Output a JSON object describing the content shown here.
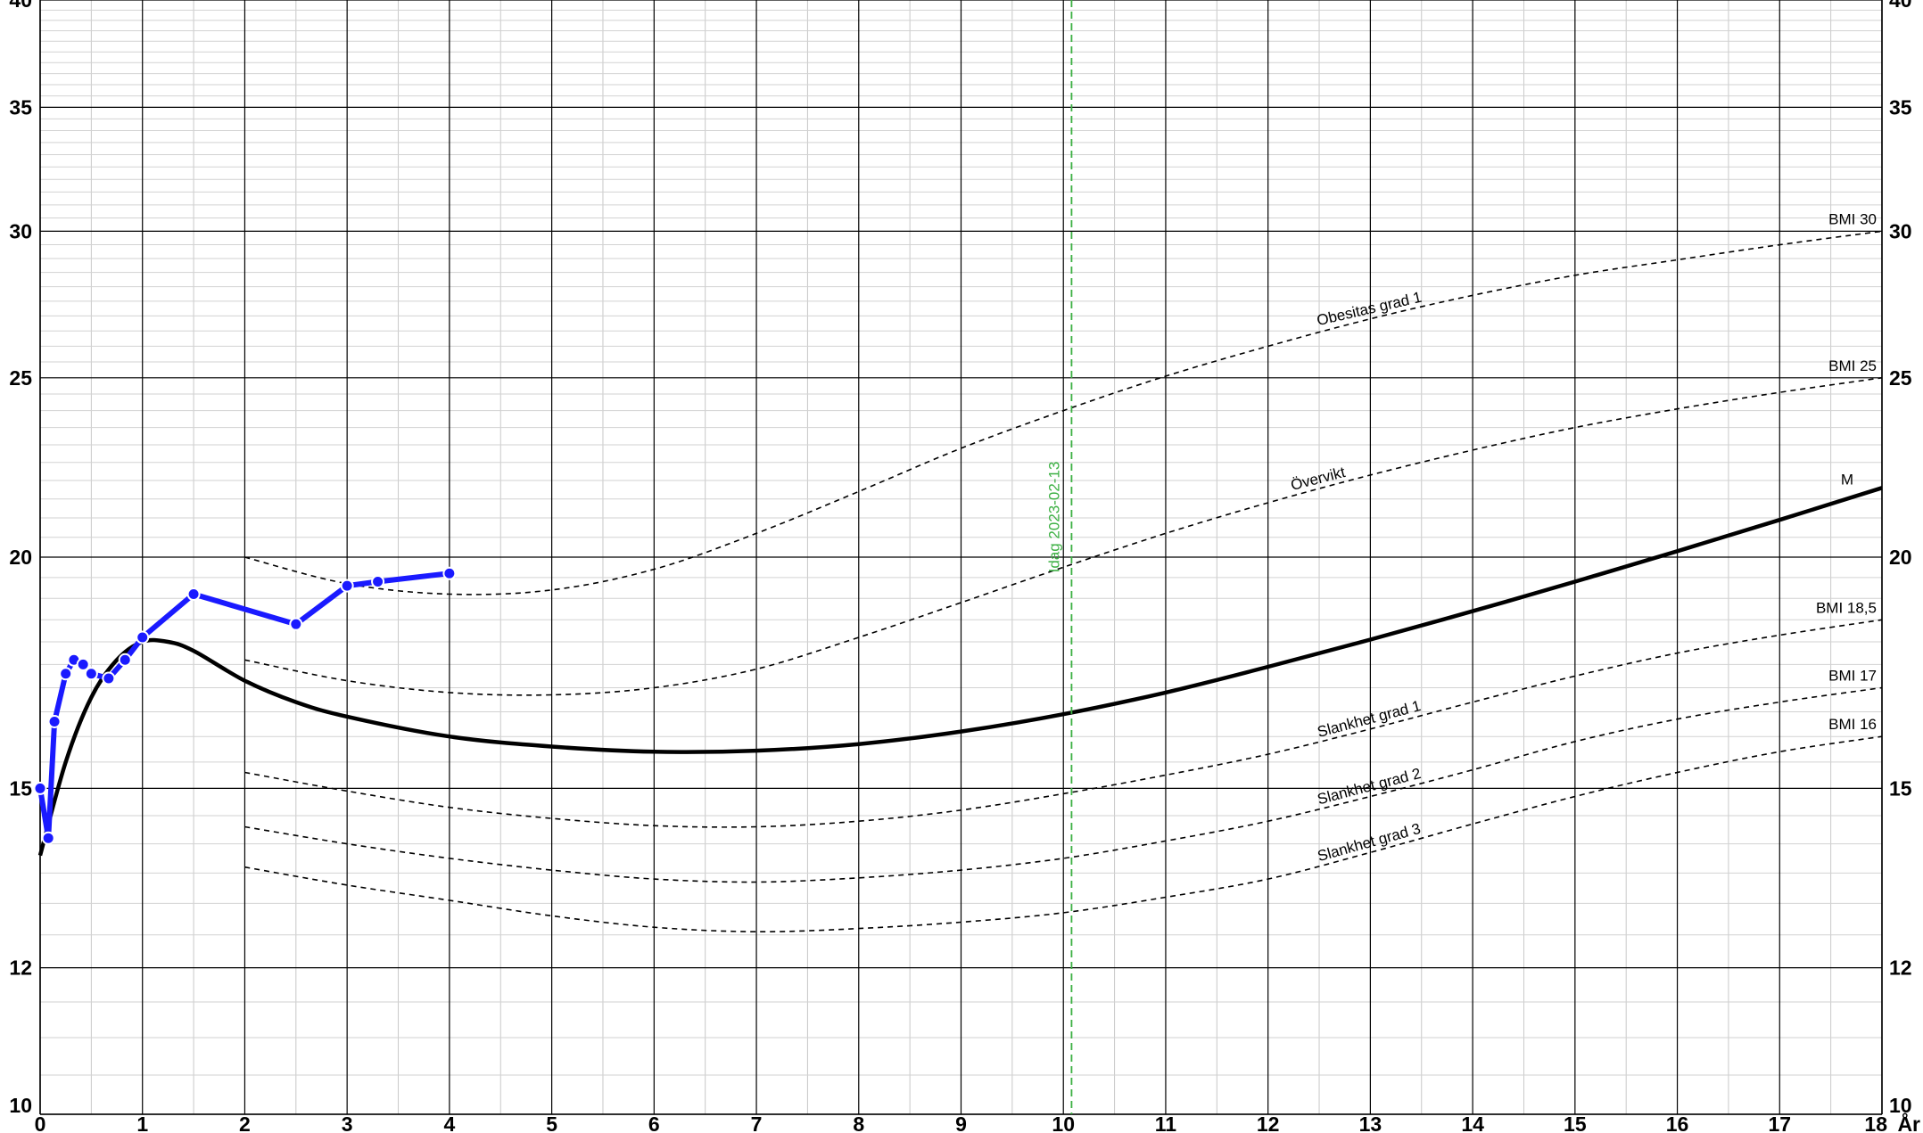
{
  "chart_data": {
    "type": "line",
    "x_unit_label": "År",
    "x_ticks": [
      "0",
      "1",
      "2",
      "3",
      "4",
      "5",
      "6",
      "7",
      "8",
      "9",
      "10",
      "11",
      "12",
      "13",
      "14",
      "15",
      "16",
      "17",
      "18"
    ],
    "y_ticks": [
      "10",
      "12",
      "15",
      "20",
      "25",
      "30",
      "35",
      "40"
    ],
    "xlim": [
      0,
      18
    ],
    "ylim": [
      10,
      40
    ],
    "y_scale": "log",
    "grid": true,
    "today_marker": {
      "x": 10.08,
      "label": "Idag 2023-02-13",
      "color": "#3cb043"
    },
    "reference_curves": [
      {
        "x": [
          2,
          3,
          4,
          5,
          6,
          7,
          8,
          9,
          10,
          11,
          12,
          13,
          14,
          15,
          16,
          17,
          18
        ],
        "y": [
          20.0,
          19.35,
          19.1,
          19.2,
          19.7,
          20.6,
          21.7,
          22.9,
          24.0,
          25.05,
          26.0,
          26.9,
          27.7,
          28.4,
          28.95,
          29.5,
          30.0
        ],
        "end_label": "BMI 30",
        "label": "Obesitas grad 1",
        "label_x": 13.0,
        "style": "dashed"
      },
      {
        "x": [
          2,
          3,
          4,
          5,
          6,
          7,
          8,
          9,
          10,
          11,
          12,
          13,
          14,
          15,
          16,
          17,
          18
        ],
        "y": [
          17.6,
          17.15,
          16.9,
          16.85,
          17.0,
          17.4,
          18.1,
          18.9,
          19.75,
          20.6,
          21.4,
          22.15,
          22.85,
          23.5,
          24.05,
          24.55,
          25.0
        ],
        "end_label": "BMI 25",
        "label": "Övervikt",
        "label_x": 12.5,
        "style": "dashed"
      },
      {
        "x": [
          2,
          3,
          4,
          5,
          6,
          7,
          8,
          9,
          10,
          11,
          12,
          13,
          14,
          15,
          16,
          17,
          18
        ],
        "y": [
          15.3,
          14.95,
          14.65,
          14.45,
          14.32,
          14.3,
          14.4,
          14.6,
          14.9,
          15.25,
          15.65,
          16.15,
          16.7,
          17.25,
          17.75,
          18.15,
          18.5
        ],
        "end_label": "BMI 18,5",
        "label": "Slankhet grad 1",
        "label_x": 13.0,
        "style": "dashed"
      },
      {
        "x": [
          2,
          3,
          4,
          5,
          6,
          7,
          8,
          9,
          10,
          11,
          12,
          13,
          14,
          15,
          16,
          17,
          18
        ],
        "y": [
          14.3,
          14.0,
          13.75,
          13.55,
          13.4,
          13.35,
          13.42,
          13.55,
          13.75,
          14.05,
          14.4,
          14.85,
          15.35,
          15.9,
          16.35,
          16.7,
          17.0
        ],
        "end_label": "BMI 17",
        "label": "Slankhet grad 2",
        "label_x": 13.0,
        "style": "dashed"
      },
      {
        "x": [
          2,
          3,
          4,
          5,
          6,
          7,
          8,
          9,
          10,
          11,
          12,
          13,
          14,
          15,
          16,
          17,
          18
        ],
        "y": [
          13.6,
          13.3,
          13.05,
          12.8,
          12.62,
          12.55,
          12.6,
          12.7,
          12.85,
          13.1,
          13.4,
          13.85,
          14.35,
          14.85,
          15.3,
          15.7,
          16.0
        ],
        "end_label": "BMI 16",
        "label": "Slankhet grad 3",
        "label_x": 13.0,
        "style": "dashed"
      }
    ],
    "median_curve": {
      "end_label": "M",
      "x": [
        0,
        0.25,
        0.5,
        0.75,
        1,
        1.25,
        1.5,
        2,
        2.5,
        3,
        4,
        5,
        6,
        7,
        8,
        9,
        10,
        11,
        12,
        13,
        14,
        15,
        16,
        17,
        18
      ],
      "y": [
        13.8,
        15.5,
        16.8,
        17.6,
        18.0,
        18.0,
        17.8,
        17.15,
        16.7,
        16.4,
        16.0,
        15.8,
        15.7,
        15.72,
        15.85,
        16.1,
        16.45,
        16.9,
        17.45,
        18.05,
        18.7,
        19.4,
        20.15,
        20.95,
        21.8
      ]
    },
    "patient_series": {
      "color": "#1a1aff",
      "x": [
        0,
        0.08,
        0.14,
        0.25,
        0.33,
        0.42,
        0.5,
        0.67,
        0.83,
        1.0,
        1.5,
        2.5,
        3.0,
        3.3,
        4.0
      ],
      "y": [
        15.0,
        14.1,
        16.3,
        17.3,
        17.6,
        17.5,
        17.3,
        17.2,
        17.6,
        18.1,
        19.1,
        18.4,
        19.3,
        19.4,
        19.6
      ]
    }
  }
}
